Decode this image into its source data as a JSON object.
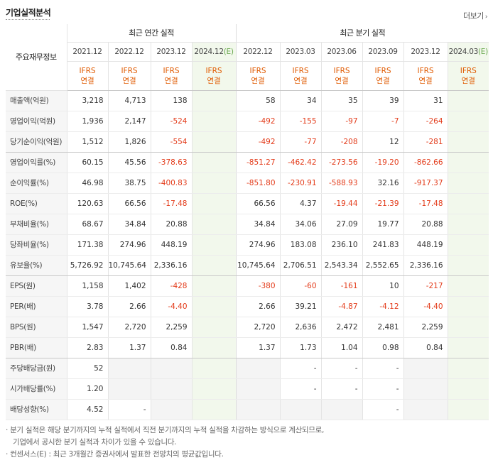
{
  "header": {
    "title": "기업실적분석",
    "more_label": "더보기",
    "more_icon": "chevron-right-icon"
  },
  "table": {
    "row_label_header": "주요재무정보",
    "group_annual": "최근 연간 실적",
    "group_quarter": "최근 분기 실적",
    "periods": [
      {
        "label": "2021.12",
        "est": false
      },
      {
        "label": "2022.12",
        "est": false
      },
      {
        "label": "2023.12",
        "est": false
      },
      {
        "label": "2024.12",
        "est": true,
        "est_mark": "(E)"
      },
      {
        "label": "2022.12",
        "est": false
      },
      {
        "label": "2023.03",
        "est": false
      },
      {
        "label": "2023.06",
        "est": false
      },
      {
        "label": "2023.09",
        "est": false
      },
      {
        "label": "2023.12",
        "est": false
      },
      {
        "label": "2024.03",
        "est": true,
        "est_mark": "(E)"
      }
    ],
    "basis_top": "IFRS",
    "basis_bottom": "연결",
    "rows": [
      {
        "label": "매출액(억원)",
        "values": [
          "3,218",
          "4,713",
          "138",
          "",
          "58",
          "34",
          "35",
          "39",
          "31",
          ""
        ]
      },
      {
        "label": "영업이익(억원)",
        "values": [
          "1,936",
          "2,147",
          "-524",
          "",
          "-492",
          "-155",
          "-97",
          "-7",
          "-264",
          ""
        ]
      },
      {
        "label": "당기순이익(억원)",
        "values": [
          "1,512",
          "1,826",
          "-554",
          "",
          "-492",
          "-77",
          "-208",
          "12",
          "-281",
          ""
        ]
      },
      {
        "label": "영업이익률(%)",
        "values": [
          "60.15",
          "45.56",
          "-378.63",
          "",
          "-851.27",
          "-462.42",
          "-273.56",
          "-19.20",
          "-862.66",
          ""
        ]
      },
      {
        "label": "순이익률(%)",
        "values": [
          "46.98",
          "38.75",
          "-400.83",
          "",
          "-851.80",
          "-230.91",
          "-588.93",
          "32.16",
          "-917.37",
          ""
        ]
      },
      {
        "label": "ROE(%)",
        "values": [
          "120.63",
          "66.56",
          "-17.48",
          "",
          "66.56",
          "4.37",
          "-19.44",
          "-21.39",
          "-17.48",
          ""
        ]
      },
      {
        "label": "부채비율(%)",
        "values": [
          "68.67",
          "34.84",
          "20.88",
          "",
          "34.84",
          "34.06",
          "27.09",
          "19.77",
          "20.88",
          ""
        ]
      },
      {
        "label": "당좌비율(%)",
        "values": [
          "171.38",
          "274.96",
          "448.19",
          "",
          "274.96",
          "183.08",
          "236.10",
          "241.83",
          "448.19",
          ""
        ]
      },
      {
        "label": "유보율(%)",
        "values": [
          "5,726.92",
          "10,745.64",
          "2,336.16",
          "",
          "10,745.64",
          "2,706.51",
          "2,543.34",
          "2,552.65",
          "2,336.16",
          ""
        ]
      },
      {
        "label": "EPS(원)",
        "values": [
          "1,158",
          "1,402",
          "-428",
          "",
          "-380",
          "-60",
          "-161",
          "10",
          "-217",
          ""
        ]
      },
      {
        "label": "PER(배)",
        "values": [
          "3.78",
          "2.66",
          "-4.40",
          "",
          "2.66",
          "39.21",
          "-4.87",
          "-4.12",
          "-4.40",
          ""
        ]
      },
      {
        "label": "BPS(원)",
        "values": [
          "1,547",
          "2,720",
          "2,259",
          "",
          "2,720",
          "2,636",
          "2,472",
          "2,481",
          "2,259",
          ""
        ]
      },
      {
        "label": "PBR(배)",
        "values": [
          "2.83",
          "1.37",
          "0.84",
          "",
          "1.37",
          "1.73",
          "1.04",
          "0.98",
          "0.84",
          ""
        ]
      },
      {
        "label": "주당배당금(원)",
        "values": [
          "52",
          "",
          "",
          "",
          "",
          "-",
          "-",
          "-",
          "",
          ""
        ]
      },
      {
        "label": "시가배당률(%)",
        "values": [
          "1.20",
          "",
          "",
          "",
          "",
          "-",
          "-",
          "-",
          "",
          ""
        ]
      },
      {
        "label": "배당성향(%)",
        "values": [
          "4.52",
          "-",
          "",
          "",
          "",
          "",
          "",
          "-",
          "",
          ""
        ]
      }
    ],
    "colors": {
      "negative": "#e33b1a",
      "ifrs": "#e05a00",
      "estimate_bg": "#f2f8ec",
      "estimate_mark": "#6aa84f"
    }
  },
  "notes": {
    "line1": "· 분기 실적은 해당 분기까지의 누적 실적에서 직전 분기까지의 누적 실적을 차감하는 방식으로 계산되므로,",
    "line2": "기업에서 공시한 분기 실적과 차이가 있을 수 있습니다.",
    "line3": "· 컨센서스(E) : 최근 3개월간 증권사에서 발표한 전망치의 평균값입니다."
  }
}
